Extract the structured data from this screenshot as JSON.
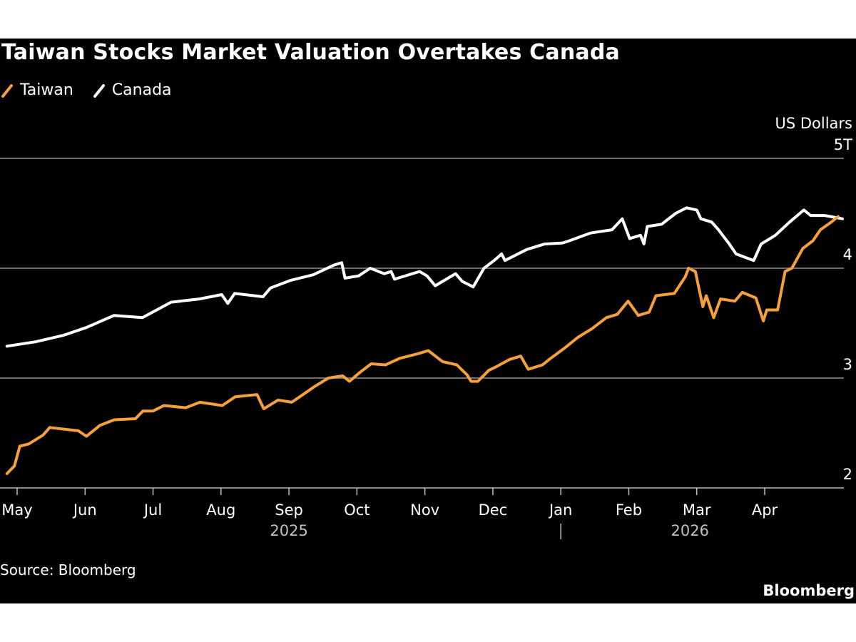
{
  "title": "Taiwan Stocks Market Valuation Overtakes Canada",
  "source": "Source: Bloomberg",
  "brand": "Bloomberg",
  "colors": {
    "background": "#000000",
    "taiwan": "#f5a03a",
    "canada": "#ffffff",
    "grid": "#6e6e6e",
    "year_text": "#bfbfbf"
  },
  "legend": [
    {
      "label": "Taiwan",
      "color": "#f5a03a"
    },
    {
      "label": "Canada",
      "color": "#ffffff"
    }
  ],
  "chart_data": {
    "type": "line",
    "title": "Taiwan Stocks Market Valuation Overtakes Canada",
    "xlabel": "",
    "ylabel": "US Dollars",
    "y_unit_label": "US Dollars",
    "y_top_tick_label": "5T",
    "ylim": [
      2,
      5
    ],
    "yticks": [
      2,
      3,
      4,
      5
    ],
    "ytick_labels": [
      "2",
      "3",
      "4",
      "5T"
    ],
    "grid": true,
    "legend_position": "top-left",
    "x_unit": "month index (0 = May 2025, 11 = Apr 2026)",
    "xlim": [
      -0.15,
      11.45
    ],
    "xticks": [
      0,
      1,
      2,
      3,
      4,
      5,
      6,
      7,
      8,
      9,
      10,
      11
    ],
    "xtick_labels": [
      "May",
      "Jun",
      "Jul",
      "Aug",
      "Sep",
      "Oct",
      "Nov",
      "Dec",
      "Jan",
      "Feb",
      "Mar",
      "Apr"
    ],
    "year_labels": [
      {
        "label": "2025",
        "at": 4.0
      },
      {
        "label": "2026",
        "at": 9.9
      }
    ],
    "year_divider_at": 8,
    "series": [
      {
        "name": "Taiwan",
        "color": "#f5a03a",
        "points": [
          [
            -0.15,
            2.13
          ],
          [
            -0.04,
            2.2
          ],
          [
            0.04,
            2.38
          ],
          [
            0.17,
            2.4
          ],
          [
            0.38,
            2.48
          ],
          [
            0.48,
            2.55
          ],
          [
            0.9,
            2.52
          ],
          [
            1.02,
            2.47
          ],
          [
            1.22,
            2.57
          ],
          [
            1.43,
            2.62
          ],
          [
            1.74,
            2.63
          ],
          [
            1.85,
            2.7
          ],
          [
            2.0,
            2.7
          ],
          [
            2.16,
            2.75
          ],
          [
            2.48,
            2.73
          ],
          [
            2.69,
            2.78
          ],
          [
            3.02,
            2.75
          ],
          [
            3.21,
            2.83
          ],
          [
            3.53,
            2.85
          ],
          [
            3.63,
            2.72
          ],
          [
            3.84,
            2.8
          ],
          [
            4.04,
            2.78
          ],
          [
            4.16,
            2.83
          ],
          [
            4.37,
            2.92
          ],
          [
            4.58,
            3.0
          ],
          [
            4.79,
            3.02
          ],
          [
            4.89,
            2.97
          ],
          [
            5.04,
            3.05
          ],
          [
            5.21,
            3.13
          ],
          [
            5.42,
            3.12
          ],
          [
            5.63,
            3.18
          ],
          [
            5.89,
            3.22
          ],
          [
            6.05,
            3.25
          ],
          [
            6.26,
            3.15
          ],
          [
            6.47,
            3.12
          ],
          [
            6.62,
            3.03
          ],
          [
            6.68,
            2.97
          ],
          [
            6.78,
            2.97
          ],
          [
            6.94,
            3.07
          ],
          [
            7.04,
            3.1
          ],
          [
            7.25,
            3.17
          ],
          [
            7.41,
            3.2
          ],
          [
            7.52,
            3.08
          ],
          [
            7.73,
            3.12
          ],
          [
            7.83,
            3.17
          ],
          [
            8.05,
            3.27
          ],
          [
            8.25,
            3.37
          ],
          [
            8.46,
            3.45
          ],
          [
            8.67,
            3.55
          ],
          [
            8.83,
            3.58
          ],
          [
            8.99,
            3.7
          ],
          [
            9.14,
            3.57
          ],
          [
            9.3,
            3.6
          ],
          [
            9.4,
            3.75
          ],
          [
            9.67,
            3.77
          ],
          [
            9.83,
            3.92
          ],
          [
            9.88,
            4.0
          ],
          [
            9.98,
            3.97
          ],
          [
            10.09,
            3.65
          ],
          [
            10.14,
            3.75
          ],
          [
            10.25,
            3.55
          ],
          [
            10.35,
            3.72
          ],
          [
            10.56,
            3.7
          ],
          [
            10.67,
            3.78
          ],
          [
            10.87,
            3.73
          ],
          [
            10.98,
            3.52
          ],
          [
            11.03,
            3.62
          ],
          [
            11.19,
            3.62
          ],
          [
            11.3,
            3.97
          ],
          [
            11.4,
            4.0
          ],
          [
            11.56,
            4.18
          ],
          [
            11.71,
            4.25
          ],
          [
            11.82,
            4.35
          ],
          [
            11.98,
            4.42
          ],
          [
            12.08,
            4.47
          ]
        ]
      },
      {
        "name": "Canada",
        "color": "#ffffff",
        "points": [
          [
            -0.15,
            3.29
          ],
          [
            0.27,
            3.33
          ],
          [
            0.69,
            3.39
          ],
          [
            1.02,
            3.46
          ],
          [
            1.43,
            3.57
          ],
          [
            1.85,
            3.55
          ],
          [
            2.0,
            3.6
          ],
          [
            2.27,
            3.69
          ],
          [
            2.69,
            3.72
          ],
          [
            3.02,
            3.76
          ],
          [
            3.11,
            3.68
          ],
          [
            3.21,
            3.77
          ],
          [
            3.63,
            3.74
          ],
          [
            3.74,
            3.82
          ],
          [
            4.04,
            3.89
          ],
          [
            4.37,
            3.94
          ],
          [
            4.68,
            4.03
          ],
          [
            4.79,
            4.05
          ],
          [
            4.84,
            3.91
          ],
          [
            5.04,
            3.93
          ],
          [
            5.21,
            4.0
          ],
          [
            5.42,
            3.95
          ],
          [
            5.52,
            3.97
          ],
          [
            5.57,
            3.9
          ],
          [
            5.94,
            3.97
          ],
          [
            6.05,
            3.93
          ],
          [
            6.17,
            3.84
          ],
          [
            6.47,
            3.95
          ],
          [
            6.57,
            3.88
          ],
          [
            6.73,
            3.83
          ],
          [
            6.89,
            4.0
          ],
          [
            7.04,
            4.07
          ],
          [
            7.15,
            4.13
          ],
          [
            7.2,
            4.07
          ],
          [
            7.52,
            4.17
          ],
          [
            7.78,
            4.22
          ],
          [
            8.05,
            4.23
          ],
          [
            8.15,
            4.25
          ],
          [
            8.46,
            4.32
          ],
          [
            8.78,
            4.35
          ],
          [
            8.93,
            4.45
          ],
          [
            9.04,
            4.27
          ],
          [
            9.2,
            4.3
          ],
          [
            9.25,
            4.22
          ],
          [
            9.3,
            4.38
          ],
          [
            9.51,
            4.4
          ],
          [
            9.72,
            4.5
          ],
          [
            9.88,
            4.55
          ],
          [
            10.03,
            4.53
          ],
          [
            10.09,
            4.45
          ],
          [
            10.25,
            4.42
          ],
          [
            10.35,
            4.35
          ],
          [
            10.51,
            4.22
          ],
          [
            10.61,
            4.13
          ],
          [
            10.87,
            4.07
          ],
          [
            10.98,
            4.22
          ],
          [
            11.19,
            4.3
          ],
          [
            11.4,
            4.42
          ],
          [
            11.61,
            4.53
          ],
          [
            11.71,
            4.48
          ],
          [
            11.92,
            4.48
          ],
          [
            12.18,
            4.45
          ]
        ]
      }
    ]
  }
}
